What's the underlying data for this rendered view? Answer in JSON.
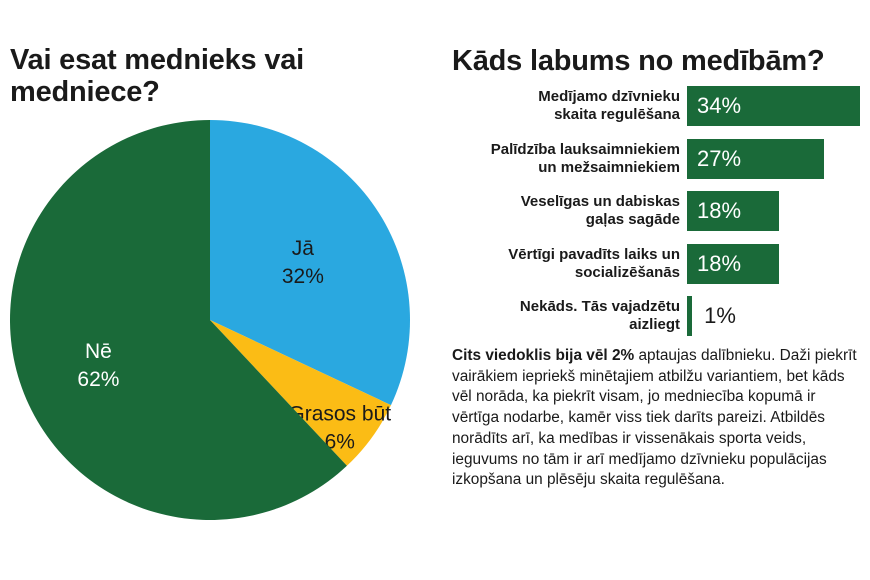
{
  "chart_data": [
    {
      "type": "pie",
      "title": "Vai esat mednieks vai medniece?",
      "slices": [
        {
          "label": "Jā",
          "value": 32,
          "value_label": "32%",
          "color": "#2aa8e0"
        },
        {
          "label": "Grasos būt",
          "value": 6,
          "value_label": "6%",
          "color": "#fbbc15"
        },
        {
          "label": "Nē",
          "value": 62,
          "value_label": "62%",
          "color": "#1a6a39"
        }
      ]
    },
    {
      "type": "bar",
      "orientation": "horizontal",
      "title": "Kāds labums no medībām?",
      "bar_color": "#1a6a39",
      "categories": [
        [
          "Medījamo dzīvnieku",
          "skaita regulēšana"
        ],
        [
          "Palīdzība lauksaimniekiem",
          "un mežsaimniekiem"
        ],
        [
          "Veselīgas un dabiskas",
          "gaļas sagāde"
        ],
        [
          "Vērtīgi pavadīts laiks un",
          "socializēšanās"
        ],
        [
          "Nekāds. Tās vajadzētu",
          "aizliegt"
        ]
      ],
      "values": [
        34,
        27,
        18,
        18,
        1
      ],
      "value_labels": [
        "34%",
        "27%",
        "18%",
        "18%",
        "1%"
      ],
      "xlim": [
        0,
        34
      ]
    }
  ],
  "note": {
    "bold": "Cits viedoklis bija vēl 2%",
    "text": " aptaujas dalībnieku. Daži piekrīt vairākiem iepriekš minētajiem atbilžu variantiem, bet kāds vēl norāda, ka piekrīt visam, jo medniecība kopumā ir vērtīga nodarbe, kamēr viss tiek darīts pareizi. Atbildēs norādīts arī, ka medības ir vissenākais sporta veids, ieguvums no tām ir arī medījamo dzīvnieku populācijas izkopšana un plēsēju skaita regulēšana."
  }
}
